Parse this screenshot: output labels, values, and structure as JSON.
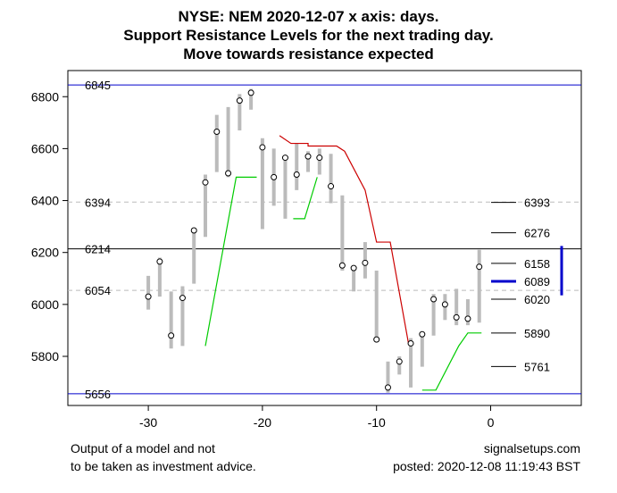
{
  "chart_data": {
    "type": "candlestick",
    "title_lines": [
      "NYSE: NEM 2020-12-07 x axis: days.",
      "Support Resistance Levels for the next trading day.",
      "Move towards resistance expected"
    ],
    "x_ticks": [
      -30,
      -20,
      -10,
      0
    ],
    "y_ticks": [
      5800,
      6000,
      6200,
      6400,
      6600,
      6800
    ],
    "xlim": [
      -34,
      8
    ],
    "ylim": [
      5630,
      6870
    ],
    "bars": [
      {
        "x": -30,
        "low": 5980,
        "high": 6110,
        "close": 6030
      },
      {
        "x": -29,
        "low": 6030,
        "high": 6180,
        "close": 6165
      },
      {
        "x": -28,
        "low": 5830,
        "high": 6050,
        "close": 5880
      },
      {
        "x": -27,
        "low": 5840,
        "high": 6070,
        "close": 6025
      },
      {
        "x": -26,
        "low": 6080,
        "high": 6290,
        "close": 6285
      },
      {
        "x": -25,
        "low": 6260,
        "high": 6500,
        "close": 6470
      },
      {
        "x": -24,
        "low": 6510,
        "high": 6730,
        "close": 6665
      },
      {
        "x": -23,
        "low": 6490,
        "high": 6760,
        "close": 6505
      },
      {
        "x": -22,
        "low": 6670,
        "high": 6810,
        "close": 6785
      },
      {
        "x": -21,
        "low": 6750,
        "high": 6830,
        "close": 6815
      },
      {
        "x": -20,
        "low": 6290,
        "high": 6640,
        "close": 6605
      },
      {
        "x": -19,
        "low": 6380,
        "high": 6600,
        "close": 6490
      },
      {
        "x": -18,
        "low": 6330,
        "high": 6570,
        "close": 6565
      },
      {
        "x": -17,
        "low": 6440,
        "high": 6620,
        "close": 6500
      },
      {
        "x": -16,
        "low": 6510,
        "high": 6590,
        "close": 6570
      },
      {
        "x": -15,
        "low": 6500,
        "high": 6600,
        "close": 6565
      },
      {
        "x": -14,
        "low": 6390,
        "high": 6580,
        "close": 6455
      },
      {
        "x": -13,
        "low": 6130,
        "high": 6420,
        "close": 6150
      },
      {
        "x": -12,
        "low": 6050,
        "high": 6150,
        "close": 6140
      },
      {
        "x": -11,
        "low": 6100,
        "high": 6240,
        "close": 6160
      },
      {
        "x": -10,
        "low": 5860,
        "high": 6130,
        "close": 5865
      },
      {
        "x": -9,
        "low": 5660,
        "high": 5780,
        "close": 5680
      },
      {
        "x": -8,
        "low": 5730,
        "high": 5800,
        "close": 5780
      },
      {
        "x": -7,
        "low": 5680,
        "high": 5870,
        "close": 5850
      },
      {
        "x": -6,
        "low": 5760,
        "high": 5890,
        "close": 5885
      },
      {
        "x": -5,
        "low": 5880,
        "high": 6040,
        "close": 6020
      },
      {
        "x": -4,
        "low": 5940,
        "high": 6040,
        "close": 6000
      },
      {
        "x": -3,
        "low": 5920,
        "high": 6060,
        "close": 5950
      },
      {
        "x": -2,
        "low": 5920,
        "high": 6020,
        "close": 5945
      },
      {
        "x": -1,
        "low": 5930,
        "high": 6210,
        "close": 6145
      }
    ],
    "horizontal_levels": [
      {
        "value": 6845,
        "label": "6845",
        "style": "solid",
        "color": "#0000cc"
      },
      {
        "value": 6394,
        "label": "6394",
        "style": "dashed",
        "color": "#bbbbbb"
      },
      {
        "value": 6214,
        "label": "6214",
        "style": "solid",
        "color": "#000000"
      },
      {
        "value": 6054,
        "label": "6054",
        "style": "dashed",
        "color": "#bbbbbb"
      },
      {
        "value": 5656,
        "label": "5656",
        "style": "solid",
        "color": "#0000cc"
      }
    ],
    "next_day_levels": [
      {
        "value": 6393,
        "label": "6393"
      },
      {
        "value": 6276,
        "label": "6276"
      },
      {
        "value": 6158,
        "label": "6158"
      },
      {
        "value": 6089,
        "label": "6089",
        "highlight": true
      },
      {
        "value": 6020,
        "label": "6020"
      },
      {
        "value": 5890,
        "label": "5890"
      },
      {
        "value": 5761,
        "label": "5761"
      }
    ],
    "resistance_line": {
      "color": "#cc0000",
      "points": [
        [
          -18.5,
          6650
        ],
        [
          -17.5,
          6620
        ],
        [
          -16,
          6620
        ],
        [
          -16,
          6610
        ],
        [
          -15,
          6610
        ],
        [
          -13.5,
          6610
        ],
        [
          -12.8,
          6590
        ],
        [
          -11,
          6440
        ],
        [
          -10,
          6240
        ],
        [
          -8.8,
          6240
        ],
        [
          -7.2,
          5850
        ]
      ]
    },
    "support_line": {
      "color": "#00cc00",
      "points": [
        [
          -25,
          5840
        ],
        [
          -22.3,
          6490
        ],
        [
          -21,
          6490
        ],
        [
          -20.5,
          6490
        ]
      ],
      "points2": [
        [
          -17.3,
          6330
        ],
        [
          -16.3,
          6330
        ],
        [
          -15.2,
          6490
        ]
      ],
      "points3": [
        [
          -6,
          5670
        ],
        [
          -4.8,
          5670
        ],
        [
          -2.8,
          5840
        ],
        [
          -2,
          5890
        ],
        [
          -0.8,
          5890
        ]
      ]
    },
    "range_bar": {
      "x": 6,
      "low": 6035,
      "high": 6225,
      "color": "#0000cc"
    }
  },
  "footer": {
    "disclaimer_1": "Output of a model and not",
    "disclaimer_2": "to be taken as investment advice.",
    "site": "signalsetups.com",
    "posted": "posted: 2020-12-08 11:19:43 BST"
  }
}
